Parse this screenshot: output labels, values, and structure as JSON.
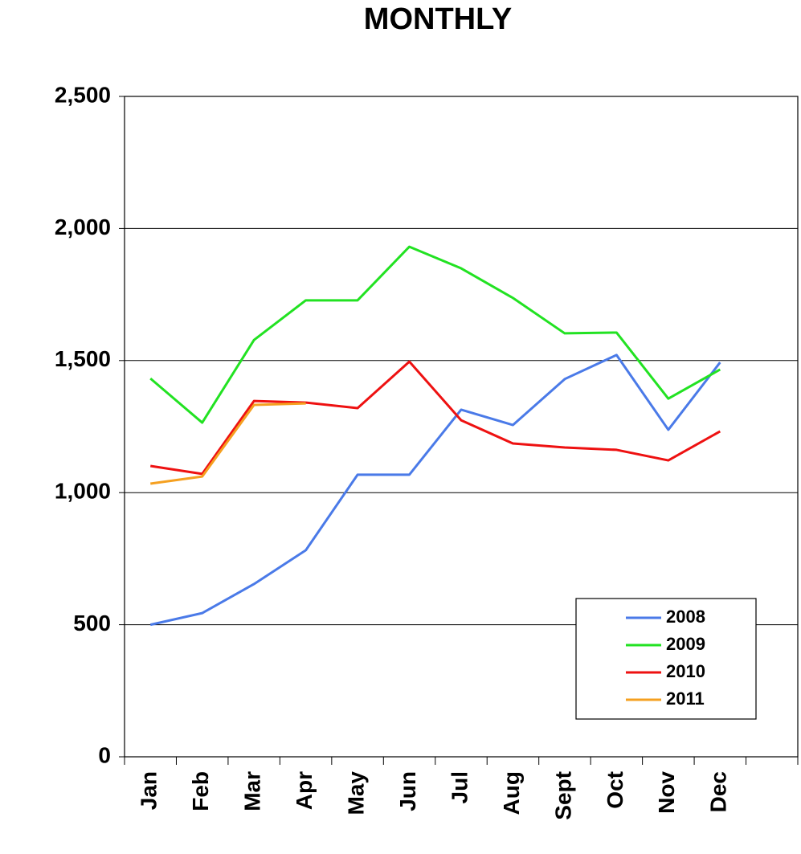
{
  "chart_data": {
    "type": "line",
    "title": "MONTHLY",
    "categories": [
      "Jan",
      "Feb",
      "Mar",
      "Apr",
      "May",
      "Jun",
      "Jul",
      "Aug",
      "Sept",
      "Oct",
      "Nov",
      "Dec",
      null
    ],
    "series": [
      {
        "name": "2008",
        "color": "#4a7ae8",
        "values": [
          500,
          544,
          654,
          782,
          1068,
          1068,
          1314,
          1256,
          1430,
          1521,
          1238,
          1493,
          null
        ]
      },
      {
        "name": "2009",
        "color": "#22e222",
        "values": [
          1432,
          1265,
          1578,
          1728,
          1728,
          1931,
          1849,
          1737,
          1603,
          1606,
          1356,
          1466,
          null
        ]
      },
      {
        "name": "2010",
        "color": "#ee1111",
        "values": [
          1101,
          1071,
          1347,
          1341,
          1320,
          1496,
          1274,
          1186,
          1171,
          1162,
          1122,
          1232,
          null
        ]
      },
      {
        "name": "2011",
        "color": "#f5a020",
        "values": [
          1034,
          1061,
          1332,
          1338,
          null,
          null,
          null,
          null,
          null,
          null,
          null,
          null,
          null
        ]
      }
    ],
    "ylim": [
      0,
      2500
    ],
    "yticks": [
      0,
      500,
      {
        "value": 1000,
        "label": "1,000"
      },
      {
        "value": 1500,
        "label": "1,500"
      },
      {
        "value": 2000,
        "label": "2,000"
      },
      {
        "value": 2500,
        "label": "2,500"
      }
    ],
    "grid": true,
    "legend": "lower right"
  }
}
